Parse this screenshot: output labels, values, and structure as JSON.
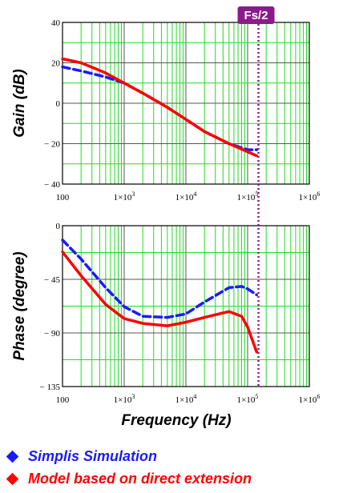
{
  "colors": {
    "simulation": "#1a1aff",
    "model": "#ff0000",
    "grid": "#22dd22",
    "marker": "#8b1a8b"
  },
  "fs_label": "Fs/2",
  "legend": [
    {
      "label": "Simplis Simulation",
      "color": "#1a1aff"
    },
    {
      "label": "Model based on direct extension",
      "color": "#ff0000"
    }
  ],
  "chart_data": [
    {
      "type": "line",
      "ylabel": "Gain (dB)",
      "xlabel": "",
      "xscale": "log",
      "xlim": [
        100,
        1000000
      ],
      "ylim": [
        -40,
        40
      ],
      "yticks": [
        40,
        20,
        0,
        -20,
        -40
      ],
      "ytick_labels": [
        "40",
        "20",
        "0",
        "− 20",
        "− 40"
      ],
      "xticks": [
        100,
        1000,
        10000,
        100000,
        1000000
      ],
      "xtick_labels": [
        "100",
        "1×10",
        "1×10",
        "1×10",
        "1×10"
      ],
      "xtick_exponents": [
        "",
        "3",
        "4",
        "5",
        "6"
      ],
      "series": [
        {
          "key": "simulation",
          "style": "dashed",
          "x": [
            100,
            200,
            500,
            1000,
            2000,
            5000,
            10000,
            20000,
            50000,
            100000,
            140000
          ],
          "y": [
            18,
            16,
            13,
            10,
            5,
            -2,
            -8,
            -14,
            -20,
            -23,
            -23
          ]
        },
        {
          "key": "model",
          "style": "solid",
          "x": [
            100,
            200,
            500,
            1000,
            2000,
            5000,
            10000,
            20000,
            50000,
            100000,
            140000
          ],
          "y": [
            22,
            20,
            15,
            10,
            5,
            -2,
            -8,
            -14,
            -20,
            -24,
            -26
          ]
        }
      ],
      "vline_x": 150000,
      "grid": true
    },
    {
      "type": "line",
      "ylabel": "Phase (degree)",
      "xlabel": "Frequency (Hz)",
      "xscale": "log",
      "xlim": [
        100,
        1000000
      ],
      "ylim": [
        -135,
        0
      ],
      "yticks": [
        0,
        -45,
        -90,
        -135
      ],
      "ytick_labels": [
        "0",
        "− 45",
        "− 90",
        "− 135"
      ],
      "xticks": [
        100,
        1000,
        10000,
        100000,
        1000000
      ],
      "xtick_labels": [
        "100",
        "1×10",
        "1×10",
        "1×10",
        "1×10"
      ],
      "xtick_exponents": [
        "",
        "3",
        "4",
        "5",
        "6"
      ],
      "series": [
        {
          "key": "simulation",
          "style": "dashed",
          "x": [
            100,
            200,
            500,
            1000,
            2000,
            5000,
            10000,
            20000,
            50000,
            80000,
            100000,
            140000
          ],
          "y": [
            -12,
            -28,
            -52,
            -68,
            -76,
            -77,
            -74,
            -64,
            -52,
            -51,
            -53,
            -58
          ]
        },
        {
          "key": "model",
          "style": "solid",
          "x": [
            100,
            200,
            500,
            1000,
            2000,
            5000,
            10000,
            20000,
            50000,
            80000,
            100000,
            140000
          ],
          "y": [
            -22,
            -42,
            -66,
            -78,
            -82,
            -84,
            -81,
            -77,
            -72,
            -76,
            -85,
            -106
          ]
        }
      ],
      "vline_x": 150000,
      "grid": true
    }
  ]
}
